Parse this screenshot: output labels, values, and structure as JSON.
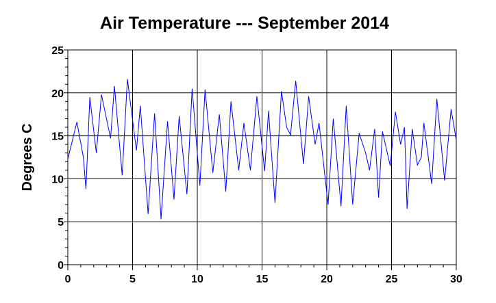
{
  "chart_data": {
    "type": "line",
    "title": "Air Temperature --- September 2014",
    "y_label": "Degrees C",
    "xlim": [
      0,
      30
    ],
    "ylim": [
      0,
      25
    ],
    "xticks": [
      0,
      5,
      10,
      15,
      20,
      25,
      30
    ],
    "yticks": [
      0,
      5,
      10,
      15,
      20,
      25
    ],
    "xminorticks": [
      1,
      2,
      3,
      4,
      6,
      7,
      8,
      9,
      11,
      12,
      13,
      14,
      16,
      17,
      18,
      19,
      21,
      22,
      23,
      24,
      26,
      27,
      28,
      29
    ],
    "yminorticks": [
      1,
      2,
      3,
      4,
      6,
      7,
      8,
      9,
      11,
      12,
      13,
      14,
      16,
      17,
      18,
      19,
      21,
      22,
      23,
      24
    ],
    "grid": true,
    "x": [
      0,
      0.7,
      1.2,
      1.4,
      1.7,
      2.2,
      2.6,
      3.3,
      3.6,
      4.2,
      4.6,
      5.3,
      5.6,
      6.2,
      6.7,
      7.2,
      7.7,
      8.2,
      8.6,
      9.2,
      9.6,
      10.2,
      10.6,
      11.2,
      11.7,
      12.2,
      12.6,
      13.2,
      13.6,
      14.1,
      14.6,
      15.2,
      15.5,
      16.0,
      16.5,
      16.9,
      17.2,
      17.6,
      18.2,
      18.6,
      19.1,
      19.4,
      20.1,
      20.5,
      21.1,
      21.5,
      22.0,
      22.5,
      23.0,
      23.3,
      23.7,
      24.0,
      24.3,
      24.9,
      25.3,
      25.7,
      26.0,
      26.2,
      26.6,
      27.0,
      27.3,
      27.5,
      28.1,
      28.5,
      29.1,
      29.6,
      30
    ],
    "series": [
      {
        "name": "Air Temperature",
        "color": "#0000ff",
        "values": [
          12.3,
          16.6,
          12.5,
          8.8,
          19.5,
          13.0,
          19.8,
          14.7,
          20.8,
          10.4,
          21.6,
          13.3,
          18.5,
          5.9,
          17.6,
          5.3,
          16.7,
          7.6,
          17.3,
          8.2,
          20.5,
          9.2,
          20.4,
          10.7,
          17.5,
          8.5,
          19.0,
          11.0,
          16.5,
          11.0,
          19.6,
          10.9,
          17.9,
          7.2,
          20.2,
          16.0,
          15.1,
          21.4,
          11.7,
          19.6,
          14.0,
          16.5,
          7.0,
          17.0,
          6.8,
          18.5,
          7.0,
          15.3,
          13.0,
          11.0,
          15.8,
          7.8,
          15.5,
          11.5,
          17.8,
          14.0,
          16.0,
          6.5,
          15.8,
          11.6,
          12.5,
          16.5,
          9.4,
          19.3,
          9.8,
          18.1,
          14.5
        ]
      }
    ]
  }
}
